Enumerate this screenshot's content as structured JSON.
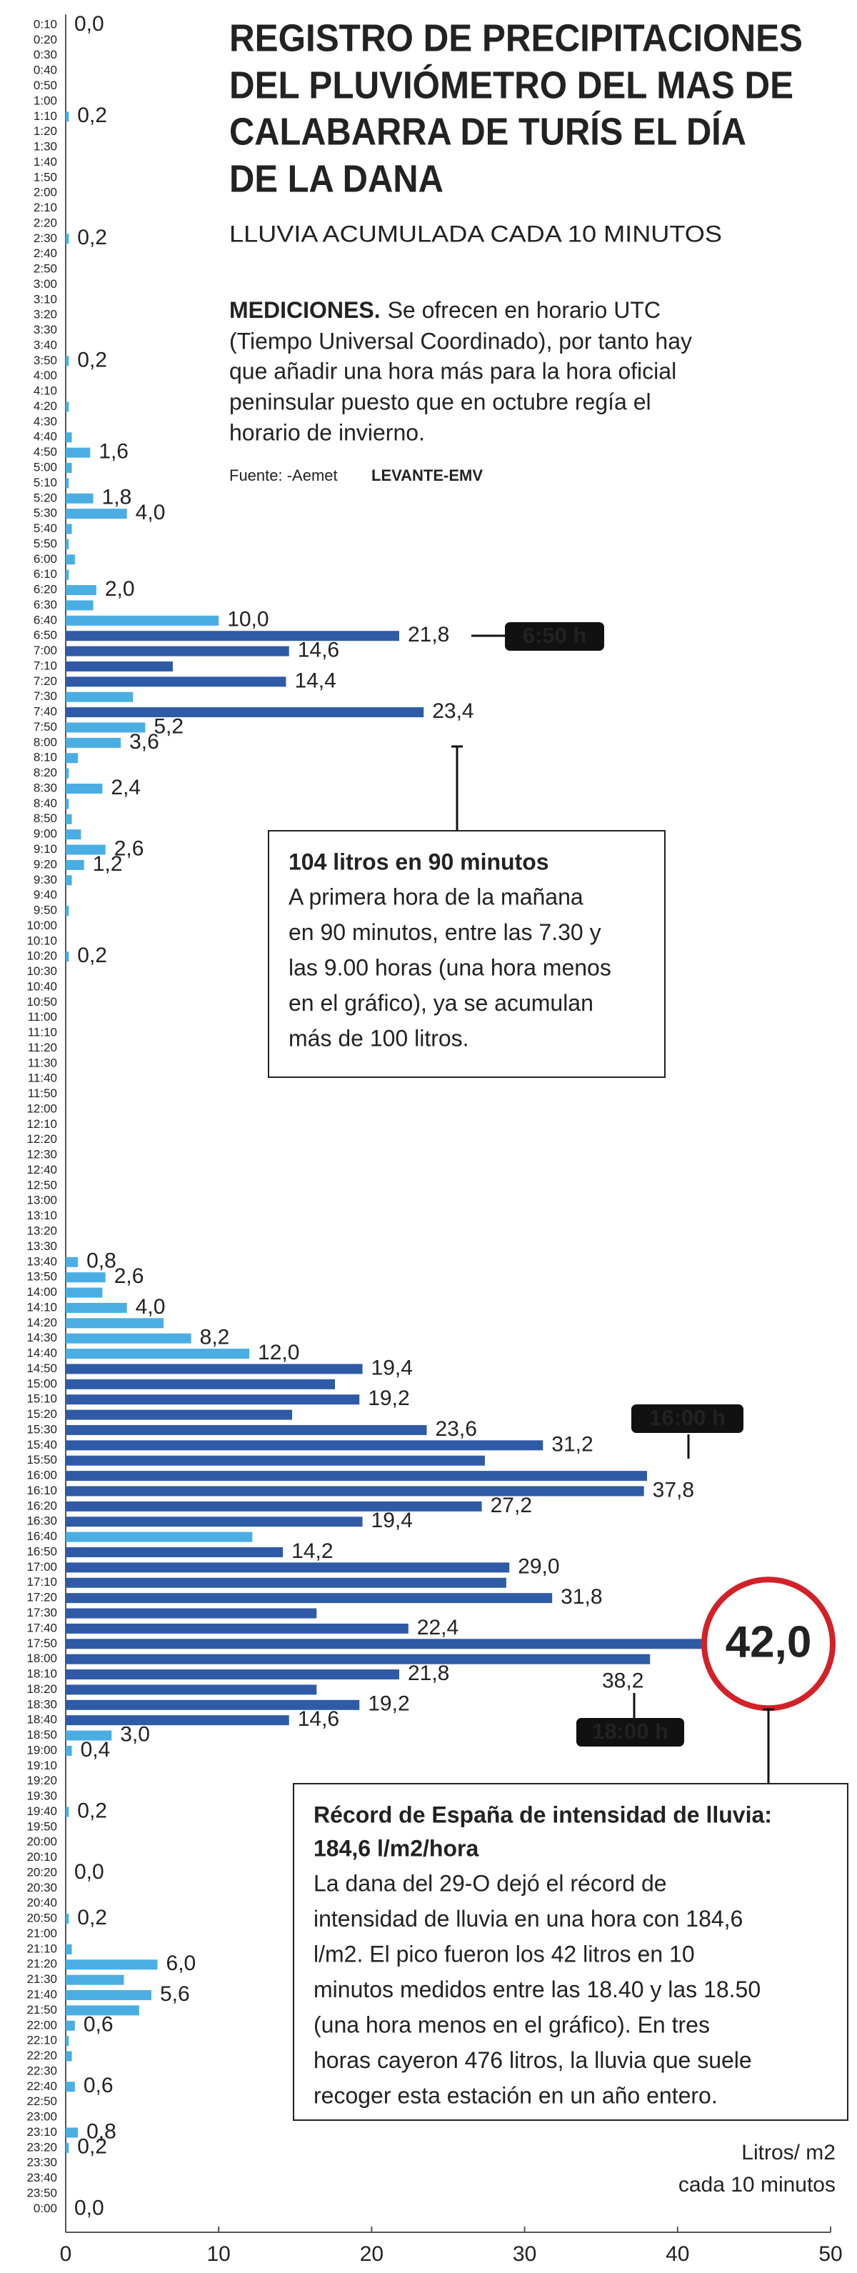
{
  "title_lines": [
    "REGISTRO DE PRECIPITACIONES",
    "DEL PLUVIÓMETRO DEL MAS DE",
    "CALABARRA DE TURÍS EL DÍA",
    "DE LA DANA"
  ],
  "subtitle": "LLUVIA ACUMULADA CADA 10 MINUTOS",
  "description": {
    "lead": "MEDICIONES.",
    "lines": [
      "Se ofrecen en horario UTC",
      "(Tiempo Universal Coordinado), por tanto hay",
      "que añadir una hora más para la hora oficial",
      "peninsular puesto que en octubre regía el",
      "horario de invierno."
    ]
  },
  "source": "Fuente: -Aemet",
  "brand": "LEVANTE-EMV",
  "chart_data": {
    "type": "bar",
    "orientation": "horizontal",
    "categories": [
      "0:10",
      "0:20",
      "0:30",
      "0:40",
      "0:50",
      "1:00",
      "1:10",
      "1:20",
      "1:30",
      "1:40",
      "1:50",
      "2:00",
      "2:10",
      "2:20",
      "2:30",
      "2:40",
      "2:50",
      "3:00",
      "3:10",
      "3:20",
      "3:30",
      "3:40",
      "3:50",
      "4:00",
      "4:10",
      "4:20",
      "4:30",
      "4:40",
      "4:50",
      "5:00",
      "5:10",
      "5:20",
      "5:30",
      "5:40",
      "5:50",
      "6:00",
      "6:10",
      "6:20",
      "6:30",
      "6:40",
      "6:50",
      "7:00",
      "7:10",
      "7:20",
      "7:30",
      "7:40",
      "7:50",
      "8:00",
      "8:10",
      "8:20",
      "8:30",
      "8:40",
      "8:50",
      "9:00",
      "9:10",
      "9:20",
      "9:30",
      "9:40",
      "9:50",
      "10:00",
      "10:10",
      "10:20",
      "10:30",
      "10:40",
      "10:50",
      "11:00",
      "11:10",
      "11:20",
      "11:30",
      "11:40",
      "11:50",
      "12:00",
      "12:10",
      "12:20",
      "12:30",
      "12:40",
      "12:50",
      "13:00",
      "13:10",
      "13:20",
      "13:30",
      "13:40",
      "13:50",
      "14:00",
      "14:10",
      "14:20",
      "14:30",
      "14:40",
      "14:50",
      "15:00",
      "15:10",
      "15:20",
      "15:30",
      "15:40",
      "15:50",
      "16:00",
      "16:10",
      "16:20",
      "16:30",
      "16:40",
      "16:50",
      "17:00",
      "17:10",
      "17:20",
      "17:30",
      "17:40",
      "17:50",
      "18:00",
      "18:10",
      "18:20",
      "18:30",
      "18:40",
      "18:50",
      "19:00",
      "19:10",
      "19:20",
      "19:30",
      "19:40",
      "19:50",
      "20:00",
      "20:10",
      "20:20",
      "20:30",
      "20:40",
      "20:50",
      "21:00",
      "21:10",
      "21:20",
      "21:30",
      "21:40",
      "21:50",
      "22:00",
      "22:10",
      "22:20",
      "22:30",
      "22:40",
      "22:50",
      "23:00",
      "23:10",
      "23:20",
      "23:30",
      "23:40",
      "23:50",
      "0:00"
    ],
    "values": [
      0,
      0,
      0,
      0,
      0,
      0,
      0.2,
      0,
      0,
      0,
      0,
      0,
      0,
      0,
      0.2,
      0,
      0,
      0,
      0,
      0,
      0,
      0,
      0.2,
      0,
      0,
      0.2,
      0,
      0.4,
      1.6,
      0.4,
      0.2,
      1.8,
      4.0,
      0.4,
      0.2,
      0.6,
      0.2,
      2.0,
      1.8,
      10.0,
      21.8,
      14.6,
      7.0,
      14.4,
      4.4,
      23.4,
      5.2,
      3.6,
      0.8,
      0.2,
      2.4,
      0.2,
      0.4,
      1.0,
      2.6,
      1.2,
      0.4,
      0,
      0.2,
      0,
      0,
      0.2,
      0,
      0,
      0,
      0,
      0,
      0,
      0,
      0,
      0,
      0,
      0,
      0,
      0,
      0,
      0,
      0,
      0,
      0,
      0,
      0.8,
      2.6,
      2.4,
      4.0,
      6.4,
      8.2,
      12.0,
      19.4,
      17.6,
      19.2,
      14.8,
      23.6,
      31.2,
      27.4,
      38.0,
      37.8,
      27.2,
      19.4,
      12.2,
      14.2,
      29.0,
      28.8,
      31.8,
      16.4,
      22.4,
      42.0,
      38.2,
      21.8,
      16.4,
      19.2,
      14.6,
      3.0,
      0.4,
      0,
      0,
      0,
      0.2,
      0,
      0,
      0,
      0.0,
      0,
      0,
      0.2,
      0,
      0.4,
      6.0,
      3.8,
      5.6,
      4.8,
      0.6,
      0.2,
      0.4,
      0,
      0.6,
      0,
      0,
      0.8,
      0.2,
      0,
      0,
      0,
      0.0
    ],
    "value_labels": [
      "0,0",
      null,
      null,
      null,
      null,
      null,
      "0,2",
      null,
      null,
      null,
      null,
      null,
      null,
      null,
      "0,2",
      null,
      null,
      null,
      null,
      null,
      null,
      null,
      "0,2",
      null,
      null,
      null,
      null,
      null,
      "1,6",
      null,
      null,
      "1,8",
      "4,0",
      null,
      null,
      null,
      null,
      "2,0",
      null,
      "10,0",
      "21,8",
      "14,6",
      null,
      "14,4",
      null,
      "23,4",
      "5,2",
      "3,6",
      null,
      null,
      "2,4",
      null,
      null,
      null,
      "2,6",
      "1,2",
      null,
      null,
      null,
      null,
      null,
      "0,2",
      null,
      null,
      null,
      null,
      null,
      null,
      null,
      null,
      null,
      null,
      null,
      null,
      null,
      null,
      null,
      null,
      null,
      null,
      null,
      "0,8",
      "2,6",
      null,
      "4,0",
      null,
      "8,2",
      "12,0",
      "19,4",
      null,
      "19,2",
      null,
      "23,6",
      "31,2",
      null,
      null,
      "37,8",
      "27,2",
      "19,4",
      null,
      "14,2",
      "29,0",
      null,
      "31,8",
      null,
      "22,4",
      "42,0",
      "38,2",
      "21,8",
      null,
      "19,2",
      "14,6",
      "3,0",
      "0,4",
      null,
      null,
      null,
      "0,2",
      null,
      null,
      null,
      "0,0",
      null,
      null,
      "0,2",
      null,
      null,
      "6,0",
      null,
      "5,6",
      null,
      "0,6",
      null,
      null,
      null,
      "0,6",
      null,
      null,
      "0,8",
      "0,2",
      null,
      null,
      null,
      "0,0"
    ],
    "colors": [
      "#4aaee3",
      "#4aaee3",
      "#4aaee3",
      "#4aaee3",
      "#4aaee3",
      "#4aaee3",
      "#4aaee3",
      "#4aaee3",
      "#4aaee3",
      "#4aaee3",
      "#4aaee3",
      "#4aaee3",
      "#4aaee3",
      "#4aaee3",
      "#4aaee3",
      "#4aaee3",
      "#4aaee3",
      "#4aaee3",
      "#4aaee3",
      "#4aaee3",
      "#4aaee3",
      "#4aaee3",
      "#4aaee3",
      "#4aaee3",
      "#4aaee3",
      "#4aaee3",
      "#4aaee3",
      "#4aaee3",
      "#4aaee3",
      "#4aaee3",
      "#4aaee3",
      "#4aaee3",
      "#4aaee3",
      "#4aaee3",
      "#4aaee3",
      "#4aaee3",
      "#4aaee3",
      "#4aaee3",
      "#4aaee3",
      "#4aaee3",
      "#2f5ba6",
      "#2f5ba6",
      "#2f5ba6",
      "#2f5ba6",
      "#4aaee3",
      "#2f5ba6",
      "#4aaee3",
      "#4aaee3",
      "#4aaee3",
      "#4aaee3",
      "#4aaee3",
      "#4aaee3",
      "#4aaee3",
      "#4aaee3",
      "#4aaee3",
      "#4aaee3",
      "#4aaee3",
      "#4aaee3",
      "#4aaee3",
      "#4aaee3",
      "#4aaee3",
      "#4aaee3",
      "#4aaee3",
      "#4aaee3",
      "#4aaee3",
      "#4aaee3",
      "#4aaee3",
      "#4aaee3",
      "#4aaee3",
      "#4aaee3",
      "#4aaee3",
      "#4aaee3",
      "#4aaee3",
      "#4aaee3",
      "#4aaee3",
      "#4aaee3",
      "#4aaee3",
      "#4aaee3",
      "#4aaee3",
      "#4aaee3",
      "#4aaee3",
      "#4aaee3",
      "#4aaee3",
      "#4aaee3",
      "#4aaee3",
      "#4aaee3",
      "#4aaee3",
      "#4aaee3",
      "#2f5ba6",
      "#2f5ba6",
      "#2f5ba6",
      "#2f5ba6",
      "#2f5ba6",
      "#2f5ba6",
      "#2f5ba6",
      "#2f5ba6",
      "#2f5ba6",
      "#2f5ba6",
      "#2f5ba6",
      "#4aaee3",
      "#2f5ba6",
      "#2f5ba6",
      "#2f5ba6",
      "#2f5ba6",
      "#2f5ba6",
      "#2f5ba6",
      "#2f5ba6",
      "#2f5ba6",
      "#2f5ba6",
      "#2f5ba6",
      "#2f5ba6",
      "#2f5ba6",
      "#4aaee3",
      "#4aaee3",
      "#4aaee3",
      "#4aaee3",
      "#4aaee3",
      "#4aaee3",
      "#4aaee3",
      "#4aaee3",
      "#4aaee3",
      "#4aaee3",
      "#4aaee3",
      "#4aaee3",
      "#4aaee3",
      "#4aaee3",
      "#4aaee3",
      "#4aaee3",
      "#4aaee3",
      "#4aaee3",
      "#4aaee3",
      "#4aaee3",
      "#4aaee3",
      "#4aaee3",
      "#4aaee3",
      "#4aaee3",
      "#4aaee3",
      "#4aaee3",
      "#4aaee3",
      "#4aaee3",
      "#4aaee3",
      "#4aaee3",
      "#4aaee3",
      "#4aaee3"
    ],
    "xlim": [
      0,
      50
    ],
    "xticks": [
      0,
      10,
      20,
      30,
      40,
      50
    ],
    "x_label_lines": [
      "Litros/ m2",
      "cada 10 minutos"
    ],
    "highlight": "17:50",
    "highlight_color": "#d42027",
    "callouts": [
      "6:50 h",
      "16:00 h",
      "18:00 h"
    ],
    "notes": [
      {
        "title_lines": [
          "104 litros en 90 minutos"
        ],
        "lines": [
          "A primera hora de la mañana",
          "en 90 minutos, entre las 7.30 y",
          "las 9.00 horas (una hora menos",
          "en el gráfico), ya se acumulan",
          "más de 100 litros."
        ]
      },
      {
        "title_lines": [
          "Récord de España de intensidad de lluvia:",
          "184,6 l/m2/hora"
        ],
        "lines": [
          "La dana del 29-O dejó el récord de",
          "intensidad de lluvia en una hora con 184,6",
          "l/m2. El pico fueron los 42 litros en 10",
          "minutos medidos entre las 18.40 y las 18.50",
          "(una hora menos en el gráfico). En tres",
          "horas cayeron 476 litros, la lluvia que suele",
          "recoger esta estación en un año entero."
        ]
      }
    ]
  }
}
